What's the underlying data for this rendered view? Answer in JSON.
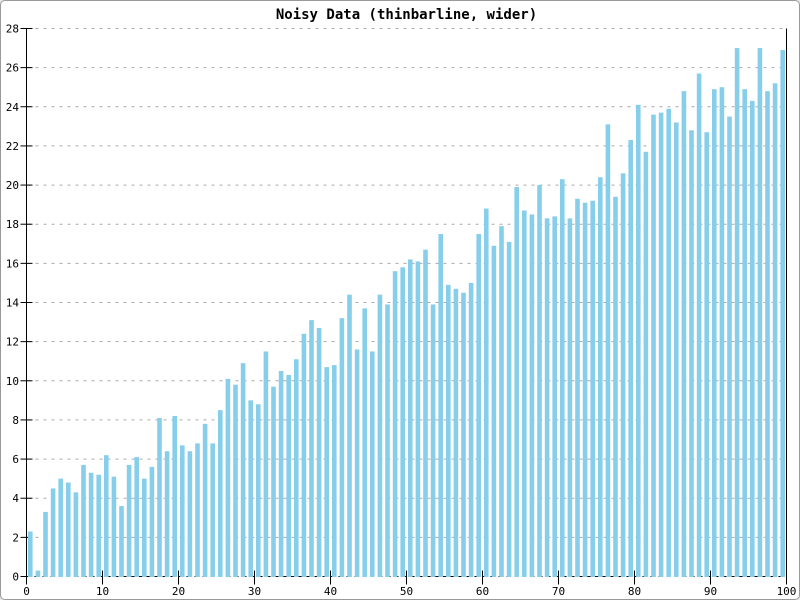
{
  "window": {
    "background": "#ffffff",
    "border_color": "#999999"
  },
  "chart_data": {
    "type": "bar",
    "subtype": "thinbarline",
    "title": "Noisy Data (thinbarline, wider)",
    "title_color": "#000000",
    "bar_color": "#87CEEB",
    "grid_color": "#aaaaaa",
    "axis_color": "#000000",
    "background_color": "#ffffff",
    "legend": "none",
    "grid": "horizontal-dashed",
    "xlabel": "",
    "ylabel": "",
    "xlim": [
      0,
      100
    ],
    "ylim": [
      0,
      28
    ],
    "x_ticks": [
      0,
      10,
      20,
      30,
      40,
      50,
      60,
      70,
      80,
      90,
      100
    ],
    "y_ticks": [
      0,
      2,
      4,
      6,
      8,
      10,
      12,
      14,
      16,
      18,
      20,
      22,
      24,
      26,
      28
    ],
    "x_start": 0.5,
    "x_step": 1,
    "values": [
      2.3,
      0.3,
      3.3,
      4.5,
      5.0,
      4.8,
      4.3,
      5.7,
      5.3,
      5.2,
      6.2,
      5.1,
      3.6,
      5.7,
      6.1,
      5.0,
      5.6,
      8.1,
      6.4,
      8.2,
      6.7,
      6.4,
      6.8,
      7.8,
      6.8,
      8.5,
      10.1,
      9.8,
      10.9,
      9.0,
      8.8,
      11.5,
      9.7,
      10.5,
      10.3,
      11.1,
      12.4,
      13.1,
      12.7,
      10.7,
      10.8,
      13.2,
      14.4,
      11.6,
      13.7,
      11.5,
      14.4,
      13.9,
      15.6,
      15.8,
      16.2,
      16.1,
      16.7,
      13.9,
      17.5,
      14.9,
      14.7,
      14.5,
      15.0,
      17.5,
      18.8,
      16.9,
      17.9,
      17.1,
      19.9,
      18.7,
      18.5,
      20.0,
      18.3,
      18.4,
      20.3,
      18.3,
      19.3,
      19.1,
      19.2,
      20.4,
      23.1,
      19.4,
      20.6,
      22.3,
      24.1,
      21.7,
      23.6,
      23.7,
      23.9,
      23.2,
      24.8,
      22.8,
      25.7,
      22.7,
      24.9,
      25.0,
      23.5,
      27.0,
      24.9,
      24.3,
      27.0,
      24.8,
      25.2,
      26.9
    ]
  }
}
